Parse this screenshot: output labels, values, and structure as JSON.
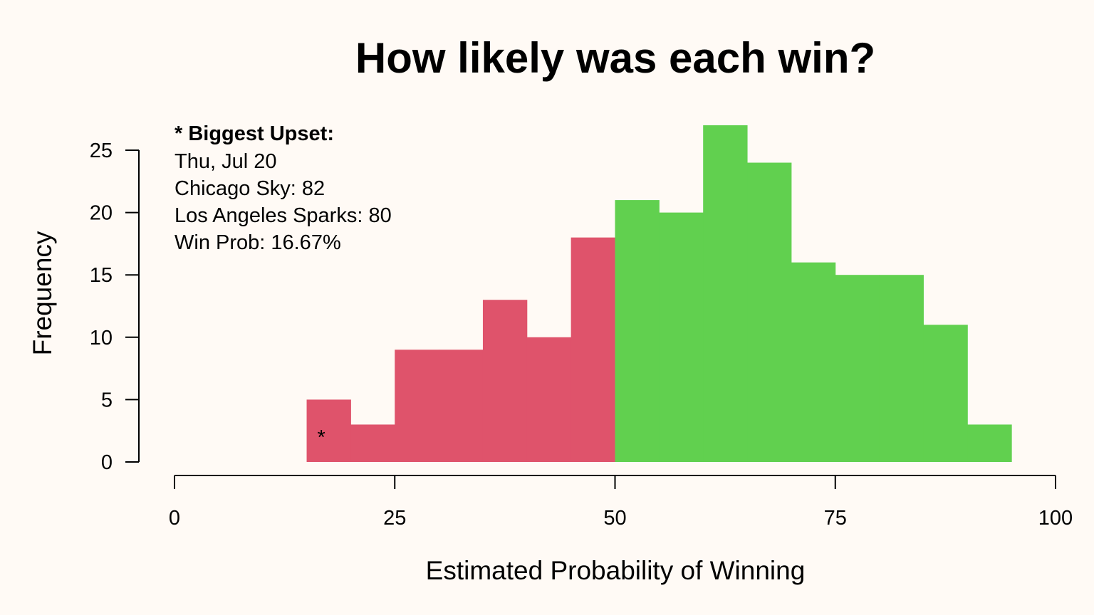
{
  "chart_data": {
    "type": "bar",
    "subtype": "histogram",
    "title": "How likely was each win?",
    "xlabel": "Estimated Probability of Winning",
    "ylabel": "Frequency",
    "xlim": [
      0,
      100
    ],
    "ylim": [
      0,
      25
    ],
    "x_ticks": [
      "0",
      "25",
      "50",
      "75",
      "100"
    ],
    "y_ticks": [
      "0",
      "5",
      "10",
      "15",
      "20",
      "25"
    ],
    "bin_width": 5,
    "bins": [
      {
        "start": 15,
        "end": 20,
        "value": 5,
        "group": "loss"
      },
      {
        "start": 20,
        "end": 25,
        "value": 3,
        "group": "loss"
      },
      {
        "start": 25,
        "end": 30,
        "value": 9,
        "group": "loss"
      },
      {
        "start": 30,
        "end": 35,
        "value": 9,
        "group": "loss"
      },
      {
        "start": 35,
        "end": 40,
        "value": 13,
        "group": "loss"
      },
      {
        "start": 40,
        "end": 45,
        "value": 10,
        "group": "loss"
      },
      {
        "start": 45,
        "end": 50,
        "value": 18,
        "group": "loss"
      },
      {
        "start": 50,
        "end": 55,
        "value": 21,
        "group": "win"
      },
      {
        "start": 55,
        "end": 60,
        "value": 20,
        "group": "win"
      },
      {
        "start": 60,
        "end": 65,
        "value": 27,
        "group": "win"
      },
      {
        "start": 65,
        "end": 70,
        "value": 24,
        "group": "win"
      },
      {
        "start": 70,
        "end": 75,
        "value": 16,
        "group": "win"
      },
      {
        "start": 75,
        "end": 80,
        "value": 15,
        "group": "win"
      },
      {
        "start": 80,
        "end": 85,
        "value": 15,
        "group": "win"
      },
      {
        "start": 85,
        "end": 90,
        "value": 11,
        "group": "win"
      },
      {
        "start": 90,
        "end": 95,
        "value": 3,
        "group": "win"
      }
    ],
    "colors": {
      "loss": "#df536b",
      "win": "#61d04f",
      "background": "#fffaf5"
    },
    "grid": false,
    "legend": "none",
    "annotation": {
      "marker": "*",
      "marker_x": 16.67,
      "marker_y": 2,
      "heading": "* Biggest Upset:",
      "lines": [
        "Thu, Jul 20",
        "Chicago Sky: 82",
        "Los Angeles Sparks: 80",
        "Win Prob: 16.67%"
      ]
    }
  }
}
